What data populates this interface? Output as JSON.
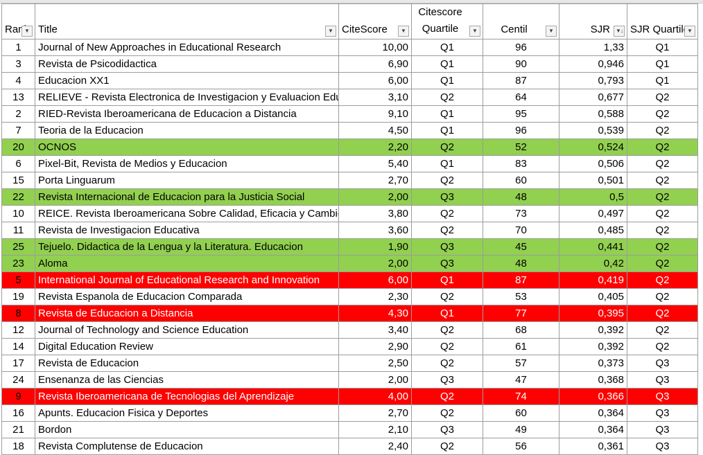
{
  "columns": {
    "rank": "Rank",
    "title": "Title",
    "citescore": "CiteScore",
    "citescore_quartile_line1": "Citescore",
    "citescore_quartile_line2": "Quartile",
    "centil": "Centil",
    "sjr": "SJR",
    "sjr_quartile": "SJR Quartile"
  },
  "highlight_colors": {
    "green": "#92d050",
    "red": "#ff0000"
  },
  "icons": {
    "filter": "dropdown-arrow-icon",
    "sorted_filter": "sort-descending-icon"
  },
  "rows": [
    {
      "rank": "1",
      "title": "Journal of New Approaches in Educational Research",
      "citescore": "10,00",
      "cs_quartile": "Q1",
      "centil": "96",
      "sjr": "1,33",
      "sjr_quartile": "Q1",
      "highlight": ""
    },
    {
      "rank": "3",
      "title": "Revista de Psicodidactica",
      "citescore": "6,90",
      "cs_quartile": "Q1",
      "centil": "90",
      "sjr": "0,946",
      "sjr_quartile": "Q1",
      "highlight": ""
    },
    {
      "rank": "4",
      "title": "Educacion XX1",
      "citescore": "6,00",
      "cs_quartile": "Q1",
      "centil": "87",
      "sjr": "0,793",
      "sjr_quartile": "Q1",
      "highlight": ""
    },
    {
      "rank": "13",
      "title": "RELIEVE - Revista Electronica de Investigacion y Evaluacion Educativa",
      "citescore": "3,10",
      "cs_quartile": "Q2",
      "centil": "64",
      "sjr": "0,677",
      "sjr_quartile": "Q2",
      "highlight": ""
    },
    {
      "rank": "2",
      "title": "RIED-Revista Iberoamericana de Educacion a Distancia",
      "citescore": "9,10",
      "cs_quartile": "Q1",
      "centil": "95",
      "sjr": "0,588",
      "sjr_quartile": "Q2",
      "highlight": ""
    },
    {
      "rank": "7",
      "title": "Teoria de la Educacion",
      "citescore": "4,50",
      "cs_quartile": "Q1",
      "centil": "96",
      "sjr": "0,539",
      "sjr_quartile": "Q2",
      "highlight": ""
    },
    {
      "rank": "20",
      "title": "OCNOS",
      "citescore": "2,20",
      "cs_quartile": "Q2",
      "centil": "52",
      "sjr": "0,524",
      "sjr_quartile": "Q2",
      "highlight": "green"
    },
    {
      "rank": "6",
      "title": "Pixel-Bit, Revista de Medios y Educacion",
      "citescore": "5,40",
      "cs_quartile": "Q1",
      "centil": "83",
      "sjr": "0,506",
      "sjr_quartile": "Q2",
      "highlight": ""
    },
    {
      "rank": "15",
      "title": "Porta Linguarum",
      "citescore": "2,70",
      "cs_quartile": "Q2",
      "centil": "60",
      "sjr": "0,501",
      "sjr_quartile": "Q2",
      "highlight": ""
    },
    {
      "rank": "22",
      "title": "Revista Internacional de Educacion para la Justicia Social",
      "citescore": "2,00",
      "cs_quartile": "Q3",
      "centil": "48",
      "sjr": "0,5",
      "sjr_quartile": "Q2",
      "highlight": "green"
    },
    {
      "rank": "10",
      "title": "REICE. Revista Iberoamericana Sobre Calidad, Eficacia y Cambio en Educacion",
      "citescore": "3,80",
      "cs_quartile": "Q2",
      "centil": "73",
      "sjr": "0,497",
      "sjr_quartile": "Q2",
      "highlight": ""
    },
    {
      "rank": "11",
      "title": "Revista de Investigacion Educativa",
      "citescore": "3,60",
      "cs_quartile": "Q2",
      "centil": "70",
      "sjr": "0,485",
      "sjr_quartile": "Q2",
      "highlight": ""
    },
    {
      "rank": "25",
      "title": "Tejuelo. Didactica de la Lengua y la Literatura. Educacion",
      "citescore": "1,90",
      "cs_quartile": "Q3",
      "centil": "45",
      "sjr": "0,441",
      "sjr_quartile": "Q2",
      "highlight": "green"
    },
    {
      "rank": "23",
      "title": "Aloma",
      "citescore": "2,00",
      "cs_quartile": "Q3",
      "centil": "48",
      "sjr": "0,42",
      "sjr_quartile": "Q2",
      "highlight": "green"
    },
    {
      "rank": "5",
      "title": "International Journal of Educational Research and Innovation",
      "citescore": "6,00",
      "cs_quartile": "Q1",
      "centil": "87",
      "sjr": "0,419",
      "sjr_quartile": "Q2",
      "highlight": "red"
    },
    {
      "rank": "19",
      "title": "Revista Espanola de Educacion Comparada",
      "citescore": "2,30",
      "cs_quartile": "Q2",
      "centil": "53",
      "sjr": "0,405",
      "sjr_quartile": "Q2",
      "highlight": ""
    },
    {
      "rank": "8",
      "title": "Revista de Educacion a Distancia",
      "citescore": "4,30",
      "cs_quartile": "Q1",
      "centil": "77",
      "sjr": "0,395",
      "sjr_quartile": "Q2",
      "highlight": "red"
    },
    {
      "rank": "12",
      "title": "Journal of Technology and Science Education",
      "citescore": "3,40",
      "cs_quartile": "Q2",
      "centil": "68",
      "sjr": "0,392",
      "sjr_quartile": "Q2",
      "highlight": ""
    },
    {
      "rank": "14",
      "title": "Digital Education Review",
      "citescore": "2,90",
      "cs_quartile": "Q2",
      "centil": "61",
      "sjr": "0,392",
      "sjr_quartile": "Q2",
      "highlight": ""
    },
    {
      "rank": "17",
      "title": "Revista de Educacion",
      "citescore": "2,50",
      "cs_quartile": "Q2",
      "centil": "57",
      "sjr": "0,373",
      "sjr_quartile": "Q3",
      "highlight": ""
    },
    {
      "rank": "24",
      "title": "Ensenanza de las Ciencias",
      "citescore": "2,00",
      "cs_quartile": "Q3",
      "centil": "47",
      "sjr": "0,368",
      "sjr_quartile": "Q3",
      "highlight": ""
    },
    {
      "rank": "9",
      "title": "Revista Iberoamericana de Tecnologias del Aprendizaje",
      "citescore": "4,00",
      "cs_quartile": "Q2",
      "centil": "74",
      "sjr": "0,366",
      "sjr_quartile": "Q3",
      "highlight": "red"
    },
    {
      "rank": "16",
      "title": "Apunts. Educacion Fisica y Deportes",
      "citescore": "2,70",
      "cs_quartile": "Q2",
      "centil": "60",
      "sjr": "0,364",
      "sjr_quartile": "Q3",
      "highlight": ""
    },
    {
      "rank": "21",
      "title": "Bordon",
      "citescore": "2,10",
      "cs_quartile": "Q3",
      "centil": "49",
      "sjr": "0,364",
      "sjr_quartile": "Q3",
      "highlight": ""
    },
    {
      "rank": "18",
      "title": "Revista Complutense de Educacion",
      "citescore": "2,40",
      "cs_quartile": "Q2",
      "centil": "56",
      "sjr": "0,361",
      "sjr_quartile": "Q3",
      "highlight": ""
    }
  ]
}
